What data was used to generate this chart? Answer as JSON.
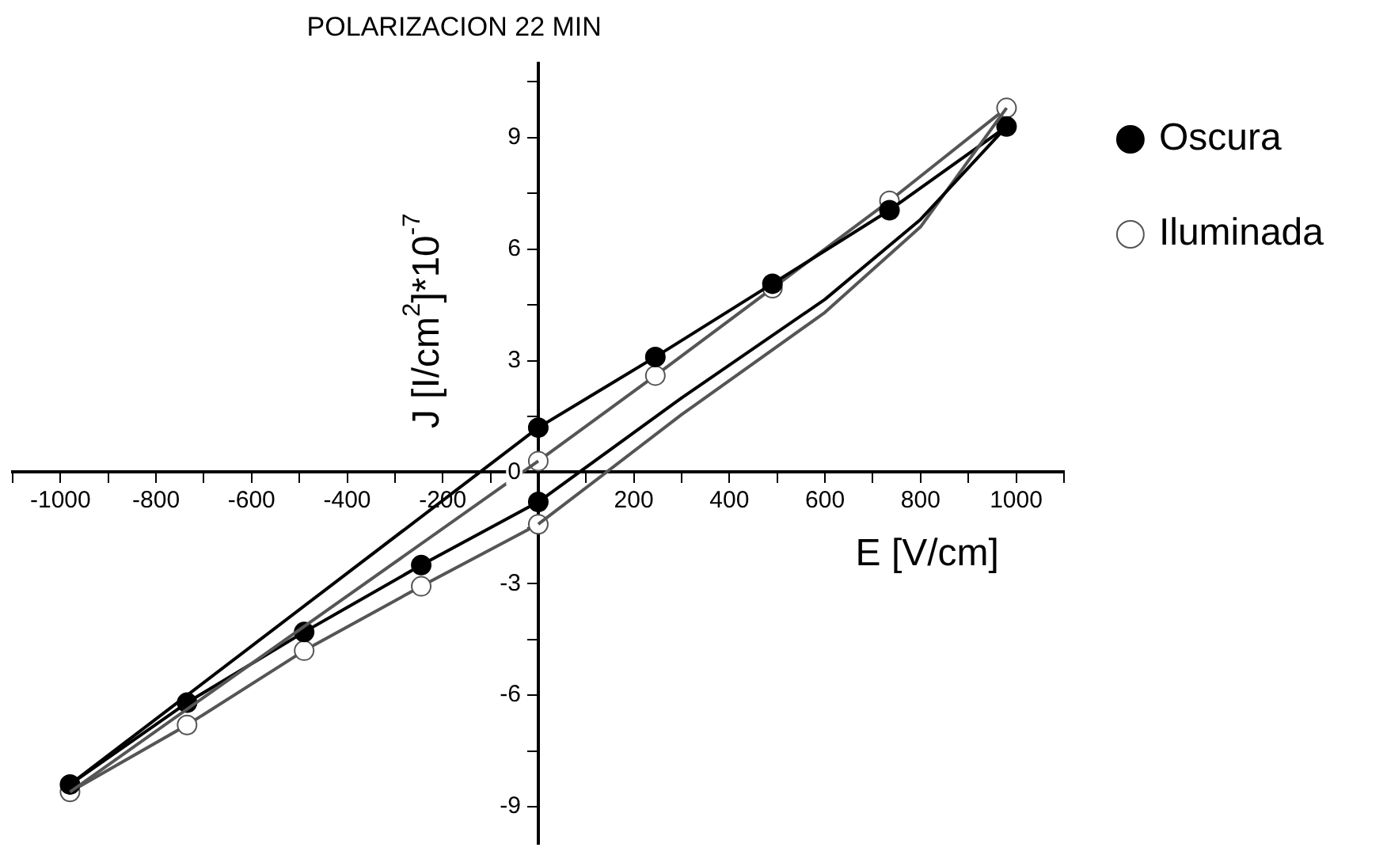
{
  "chart_data": {
    "type": "line",
    "title": "POLARIZACION 22 MIN",
    "xlabel": "E [V/cm]",
    "ylabel": "J [I/cm$^{2}$]*10$^{-7}$",
    "xlim": [
      -1100,
      1100
    ],
    "ylim": [
      -10,
      11
    ],
    "xticks": [
      {
        "value": -1100,
        "label": null
      },
      -1000,
      {
        "value": -900,
        "label": null
      },
      -800,
      {
        "value": -700,
        "label": null
      },
      -600,
      {
        "value": -500,
        "label": null
      },
      -400,
      {
        "value": -300,
        "label": null
      },
      -200,
      {
        "value": -100,
        "label": null
      },
      {
        "value": 0,
        "label": null
      },
      {
        "value": 100,
        "label": null
      },
      200,
      {
        "value": 300,
        "label": null
      },
      400,
      {
        "value": 500,
        "label": null
      },
      600,
      {
        "value": 700,
        "label": null
      },
      800,
      {
        "value": 900,
        "label": null
      },
      1000,
      {
        "value": 1100,
        "label": null
      }
    ],
    "yticks": [
      -9,
      {
        "value": -7.5,
        "label": null
      },
      -6,
      {
        "value": -4.5,
        "label": null
      },
      -3,
      {
        "value": -1.5,
        "label": null
      },
      0,
      {
        "value": 1.5,
        "label": null
      },
      3,
      {
        "value": 4.5,
        "label": null
      },
      6,
      {
        "value": 7.5,
        "label": null
      },
      9,
      {
        "value": 10.5,
        "label": null
      }
    ],
    "grid": false,
    "legend": "top right",
    "marker": "circle",
    "line_style": "solid",
    "series": [
      {
        "name": "Oscura",
        "color": "#000000",
        "x": [
          -980,
          -735,
          -490,
          -245,
          0
        ],
        "values": [
          -8.4,
          -6.2,
          -4.3,
          -2.5,
          -0.8
        ]
      },
      {
        "name": "Iluminada",
        "color": "#555555",
        "x": [
          -980,
          -735,
          -490,
          -245,
          0
        ],
        "values": [
          -8.6,
          -6.8,
          -4.8,
          -3.07,
          -1.4
        ]
      },
      {
        "color": "#000000",
        "x": [
          980,
          735,
          490,
          245,
          0
        ],
        "values": [
          9.3,
          7.05,
          5.07,
          3.1,
          1.2
        ]
      },
      {
        "color": "#555555",
        "x": [
          980,
          735,
          490,
          245,
          0
        ],
        "values": [
          9.8,
          7.3,
          4.95,
          2.6,
          0.3
        ]
      },
      {
        "color": "#000000",
        "marker": "none",
        "x": [
          0,
          300,
          600,
          800,
          980
        ],
        "values": [
          -0.8,
          2.0,
          4.65,
          6.8,
          9.3
        ]
      },
      {
        "color": "#000000",
        "marker": "none",
        "x": [
          0,
          -980
        ],
        "values": [
          1.2,
          -8.4
        ]
      },
      {
        "color": "#555555",
        "marker": "none",
        "x": [
          0,
          300,
          600,
          800,
          980
        ],
        "values": [
          -1.4,
          1.55,
          4.3,
          6.6,
          9.8
        ]
      },
      {
        "color": "#555555",
        "marker": "none",
        "x": [
          0,
          -980
        ],
        "values": [
          0.3,
          -8.6
        ]
      }
    ]
  }
}
